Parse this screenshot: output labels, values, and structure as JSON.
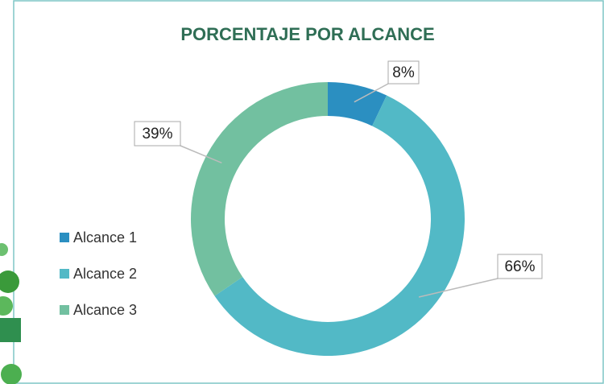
{
  "chart_data": {
    "type": "donut",
    "title": "PORCENTAJE POR ALCANCE",
    "categories": [
      "Alcance 1",
      "Alcance 2",
      "Alcance 3"
    ],
    "values": [
      8,
      66,
      39
    ],
    "value_labels": [
      "8%",
      "66%",
      "39%"
    ],
    "colors": [
      "#2b8fc1",
      "#52b9c6",
      "#72c0a0"
    ],
    "legend": "left"
  }
}
